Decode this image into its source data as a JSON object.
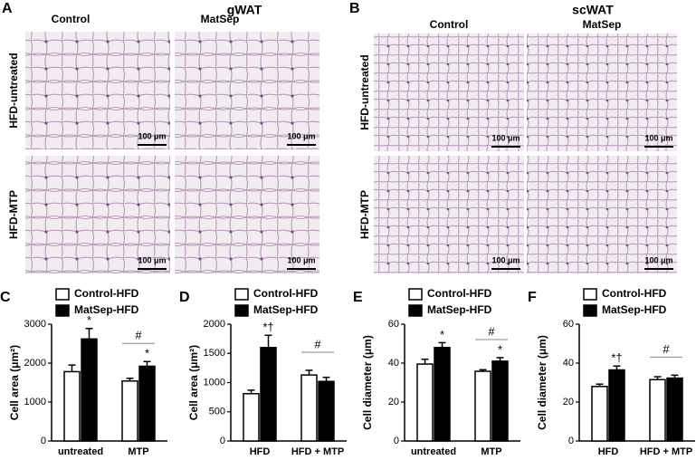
{
  "panels": [
    {
      "letter": "A",
      "title": "gWAT",
      "columns": [
        "Control",
        "MatSep"
      ],
      "rows": [
        "HFD-untreated",
        "HFD-MTP"
      ],
      "scale_bar": "100 μm"
    },
    {
      "letter": "B",
      "title": "scWAT",
      "columns": [
        "Control",
        "MatSep"
      ],
      "rows": [
        "HFD-untreated",
        "HFD-MTP"
      ],
      "scale_bar": "100 μm"
    }
  ],
  "chart_data": [
    {
      "type": "bar",
      "letter": "C",
      "y_label": "Cell area (μm²)",
      "categories": [
        "untreated",
        "MTP"
      ],
      "series": [
        {
          "name": "Control-HFD",
          "color": "#ffffff",
          "values": [
            1780,
            1540
          ],
          "errors": [
            170,
            70
          ]
        },
        {
          "name": "MatSep-HFD",
          "color": "#000000",
          "values": [
            2620,
            1920
          ],
          "errors": [
            270,
            120
          ]
        }
      ],
      "ylim": [
        0,
        3000
      ],
      "yticks": [
        0,
        1000,
        2000,
        3000
      ],
      "annotations": [
        {
          "text": "*",
          "series": 1,
          "category": 0
        },
        {
          "text": "#",
          "category": 1,
          "bracket": true
        },
        {
          "text": "*",
          "series": 1,
          "category": 1
        }
      ]
    },
    {
      "type": "bar",
      "letter": "D",
      "y_label": "Cell area (μm²)",
      "categories": [
        "HFD",
        "HFD + MTP"
      ],
      "series": [
        {
          "name": "Control-HFD",
          "color": "#ffffff",
          "values": [
            810,
            1130
          ],
          "errors": [
            60,
            80
          ]
        },
        {
          "name": "MatSep-HFD",
          "color": "#000000",
          "values": [
            1600,
            1020
          ],
          "errors": [
            210,
            70
          ]
        }
      ],
      "ylim": [
        0,
        2000
      ],
      "yticks": [
        0,
        500,
        1000,
        1500,
        2000
      ],
      "annotations": [
        {
          "text": "*†",
          "series": 1,
          "category": 0
        },
        {
          "text": "#",
          "category": 1,
          "bracket": true
        }
      ]
    },
    {
      "type": "bar",
      "letter": "E",
      "y_label": "Cell diameter (μm)",
      "categories": [
        "untreated",
        "MTP"
      ],
      "series": [
        {
          "name": "Control-HFD",
          "color": "#ffffff",
          "values": [
            39.5,
            35.8
          ],
          "errors": [
            2.5,
            0.8
          ]
        },
        {
          "name": "MatSep-HFD",
          "color": "#000000",
          "values": [
            48,
            41
          ],
          "errors": [
            2.5,
            1.8
          ]
        }
      ],
      "ylim": [
        0,
        60
      ],
      "yticks": [
        0,
        20,
        40,
        60
      ],
      "annotations": [
        {
          "text": "*",
          "series": 1,
          "category": 0
        },
        {
          "text": "#",
          "category": 1,
          "bracket": true
        },
        {
          "text": "*",
          "series": 1,
          "category": 1
        }
      ]
    },
    {
      "type": "bar",
      "letter": "F",
      "y_label": "Cell diameter (μm)",
      "categories": [
        "HFD",
        "HFD + MTP"
      ],
      "series": [
        {
          "name": "Control-HFD",
          "color": "#ffffff",
          "values": [
            28,
            31.5
          ],
          "errors": [
            1.2,
            1.5
          ]
        },
        {
          "name": "MatSep-HFD",
          "color": "#000000",
          "values": [
            36.5,
            32.3
          ],
          "errors": [
            2,
            1.5
          ]
        }
      ],
      "ylim": [
        0,
        60
      ],
      "yticks": [
        0,
        20,
        40,
        60
      ],
      "annotations": [
        {
          "text": "*†",
          "series": 1,
          "category": 0
        },
        {
          "text": "#",
          "category": 1,
          "bracket": true
        }
      ]
    }
  ]
}
